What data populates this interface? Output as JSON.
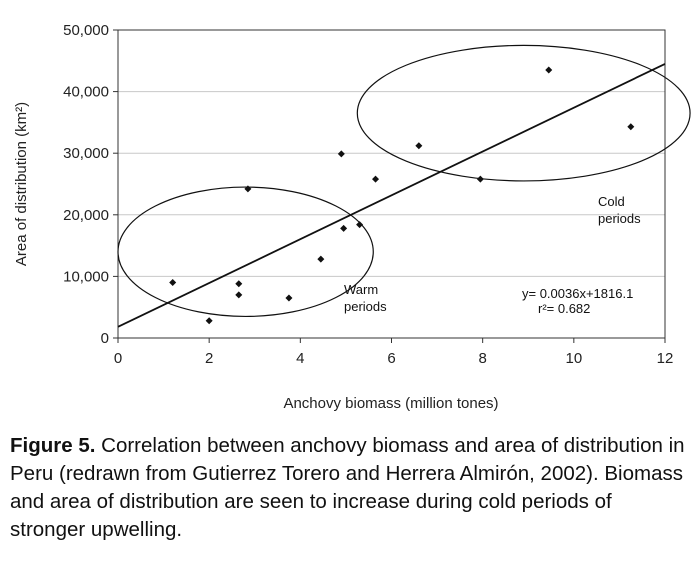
{
  "chart_data": {
    "type": "scatter",
    "xlabel": "Anchovy biomass (million tones)",
    "ylabel": "Area of distribution (km²)",
    "xlim": [
      0,
      12
    ],
    "ylim": [
      0,
      50000
    ],
    "x_ticks": [
      0,
      2,
      4,
      6,
      8,
      10,
      12
    ],
    "y_ticks": [
      0,
      10000,
      20000,
      30000,
      40000,
      50000
    ],
    "x_tick_labels": [
      "0",
      "2",
      "4",
      "6",
      "8",
      "10",
      "12"
    ],
    "y_tick_labels": [
      "0",
      "10,000",
      "20,000",
      "30,000",
      "40,000",
      "50,000"
    ],
    "grid": "horizontal",
    "points": [
      {
        "x": 1.2,
        "y": 9000
      },
      {
        "x": 2.0,
        "y": 2800
      },
      {
        "x": 2.65,
        "y": 7000
      },
      {
        "x": 2.65,
        "y": 8800
      },
      {
        "x": 2.85,
        "y": 24200
      },
      {
        "x": 3.75,
        "y": 6500
      },
      {
        "x": 4.45,
        "y": 12800
      },
      {
        "x": 4.9,
        "y": 29900
      },
      {
        "x": 4.95,
        "y": 17800
      },
      {
        "x": 5.3,
        "y": 18400
      },
      {
        "x": 5.65,
        "y": 25800
      },
      {
        "x": 6.6,
        "y": 31200
      },
      {
        "x": 7.95,
        "y": 25800
      },
      {
        "x": 9.45,
        "y": 43500
      },
      {
        "x": 11.25,
        "y": 34300
      }
    ],
    "trendline": {
      "slope": 0.0036,
      "intercept": 1816.1,
      "slope_note": "y= 0.0036x+1816.1",
      "r2": "r²= 0.682"
    },
    "annotations": {
      "warm": [
        "Warm",
        "periods"
      ],
      "cold": [
        "Cold",
        "periods"
      ],
      "equation": "y= 0.0036x+1816.1",
      "r_squared": "r²= 0.682"
    },
    "groups": [
      {
        "label": "Warm periods",
        "center_x": 2.8,
        "center_y": 14000,
        "radius_x": 2.8,
        "radius_y": 10500
      },
      {
        "label": "Cold periods",
        "center_x": 8.9,
        "center_y": 36500,
        "radius_x": 3.65,
        "radius_y": 11000
      }
    ]
  },
  "caption": {
    "label": "Figure 5.",
    "text": " Correlation between anchovy biomass and area of distribution in Peru (redrawn from Gutierrez Torero and Herrera Almirón, 2002). Biomass and area of distribution are seen to increase during cold periods of stronger upwelling."
  }
}
